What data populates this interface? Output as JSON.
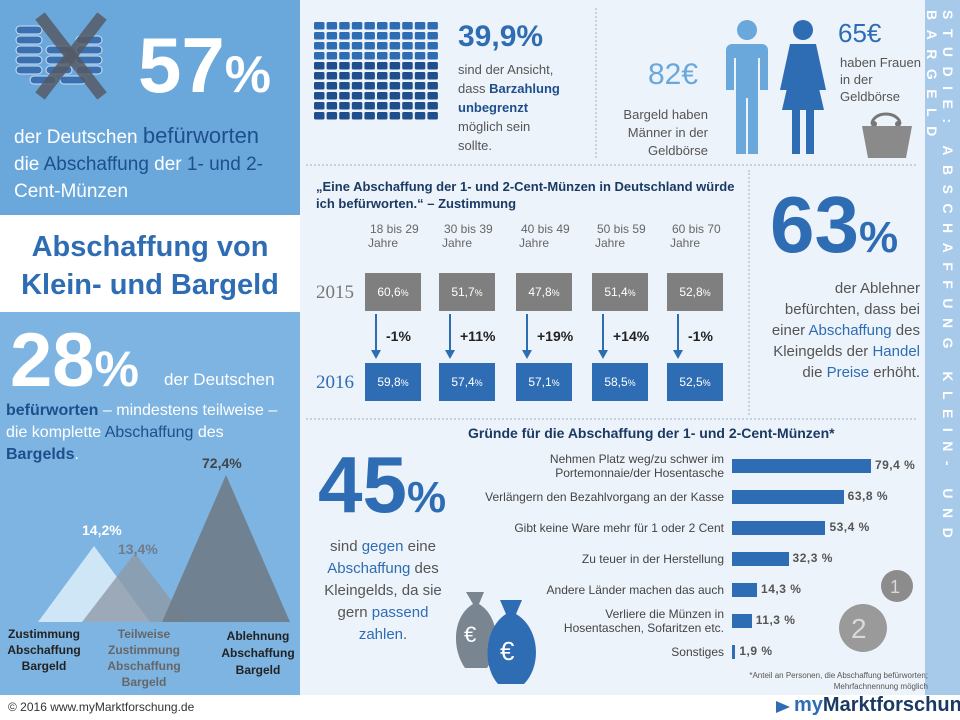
{
  "top_left": {
    "pct_num": "57",
    "pct_sign": "%",
    "text_parts": [
      "der Deutschen ",
      "befürworten",
      " die ",
      "Abschaffung",
      " der ",
      "1- und 2-",
      " Cent-Münzen"
    ]
  },
  "title": {
    "line1": "Abschaffung von",
    "line2": "Klein- und Bargeld"
  },
  "left_28": {
    "pct_num": "28",
    "pct_sign": "%",
    "t1": "der Deutschen",
    "t2": "befürworten",
    "t3": " – mindestens teilweise –",
    "t4": "die komplette ",
    "t5": "Abschaffung",
    "t6": " des",
    "t7": "Bargelds",
    "t8": "."
  },
  "stat_399": {
    "pct": "39,9%",
    "l1": "sind der Ansicht,",
    "l2": "dass ",
    "l2b": "Barzahlung",
    "l3": "unbegrenzt",
    "l4": "möglich sein",
    "l5": "sollte."
  },
  "wallet": {
    "men_amount": "82€",
    "men_l1": "Bargeld haben",
    "men_l2": "Männer in der",
    "men_l3": "Geldbörse",
    "women_amount": "65€",
    "women_l1": "haben Frauen",
    "women_l2": "in der",
    "women_l3": "Geldbörse"
  },
  "stat_63": {
    "pct_num": "63",
    "pct_sign": "%",
    "l1": "der Ablehner",
    "l2": "befürchten, dass bei",
    "l3a": "einer ",
    "l3b": "Abschaffung",
    "l3c": " des",
    "l4a": "Kleingelds der ",
    "l4b": "Handel",
    "l5a": "die ",
    "l5b": "Preise",
    "l5c": " erhöht."
  },
  "stat_45": {
    "pct_num": "45",
    "pct_sign": "%",
    "l1a": "sind ",
    "l1b": "gegen",
    "l1c": " eine",
    "l2": "Abschaffung",
    "l2b": " des",
    "l3": "Kleingelds, da sie",
    "l4a": "gern ",
    "l4b": "passend",
    "l5": "zahlen",
    "l5b": "."
  },
  "side_text": "STUDIE: ABSCHAFFUNG KLEIN- UND BARGELD",
  "footer": {
    "copyright": "© 2016 www.myMarktforschung.de",
    "brand_my": "my",
    "brand_rest": "Marktforschung"
  },
  "icons": [
    "coins-stack-icon",
    "cross-icon",
    "banknotes-grid-icon",
    "man-icon",
    "woman-icon",
    "purse-icon",
    "money-bag-icon",
    "coin-icon",
    "arrow-down-icon",
    "play-triangle-icon"
  ],
  "colors": {
    "accent": "#2e6db4",
    "light_blue": "#6aa8dc",
    "grey_box": "#7f7f7f",
    "background": "#edf3fa"
  },
  "chart_data": [
    {
      "type": "table",
      "title": "„Eine Abschaffung der 1- und 2-Cent-Münzen in Deutschland würde ich befürworten.“ – Zustimmung",
      "categories": [
        [
          "18 bis 29",
          "Jahre"
        ],
        [
          "30 bis 39",
          "Jahre"
        ],
        [
          "40 bis 49",
          "Jahre"
        ],
        [
          "50 bis 59",
          "Jahre"
        ],
        [
          "60 bis 70",
          "Jahre"
        ]
      ],
      "series": [
        {
          "name": "2015",
          "values": [
            60.6,
            51.7,
            47.8,
            51.4,
            52.8
          ],
          "labels": [
            "60,6",
            "51,7",
            "47,8",
            "51,4",
            "52,8"
          ]
        },
        {
          "name": "2016",
          "values": [
            59.8,
            57.4,
            57.1,
            58.5,
            52.5
          ],
          "labels": [
            "59,8",
            "57,4",
            "57,1",
            "58,5",
            "52,5"
          ]
        }
      ],
      "unit": "%",
      "changes": [
        "-1%",
        "+11%",
        "+19%",
        "+14%",
        "-1%"
      ]
    },
    {
      "type": "bar",
      "orientation": "horizontal",
      "title": "Gründe für die Abschaffung der 1- und 2-Cent-Münzen*",
      "categories": [
        [
          "Nehmen Platz weg/zu schwer im",
          "Portemonnaie/der Hosentasche"
        ],
        [
          "Verlängern den Bezahlvorgang an der Kasse"
        ],
        [
          "Gibt keine Ware mehr für 1 oder 2 Cent"
        ],
        [
          "Zu teuer in der Herstellung"
        ],
        [
          "Andere Länder machen das auch"
        ],
        [
          "Verliere die Münzen in",
          "Hosentaschen, Sofaritzen etc."
        ],
        [
          "Sonstiges"
        ]
      ],
      "values": [
        79.4,
        63.8,
        53.4,
        32.3,
        14.3,
        11.3,
        1.9
      ],
      "labels": [
        "79,4 %",
        "63,8 %",
        "53,4 %",
        "32,3 %",
        "14,3 %",
        "11,3 %",
        "1,9 %"
      ],
      "xlim": [
        0,
        100
      ],
      "footnote": [
        "*Anteil an Personen, die Abschaffung befürworten;",
        "Mehrfachnennung möglich"
      ]
    },
    {
      "type": "area",
      "subtype": "triangles",
      "categories": [
        [
          "Zustimmung",
          "Abschaffung",
          "Bargeld"
        ],
        [
          "Teilweise",
          "Zustimmung",
          "Abschaffung",
          "Bargeld"
        ],
        [
          "Ablehnung",
          "Abschaffung",
          "Bargeld"
        ]
      ],
      "values": [
        14.2,
        13.4,
        72.4
      ],
      "labels": [
        "14,2%",
        "13,4%",
        "72,4%"
      ],
      "colors": [
        "#cfe6f7",
        "#8fa0b2",
        "#6e7d8c"
      ]
    }
  ]
}
